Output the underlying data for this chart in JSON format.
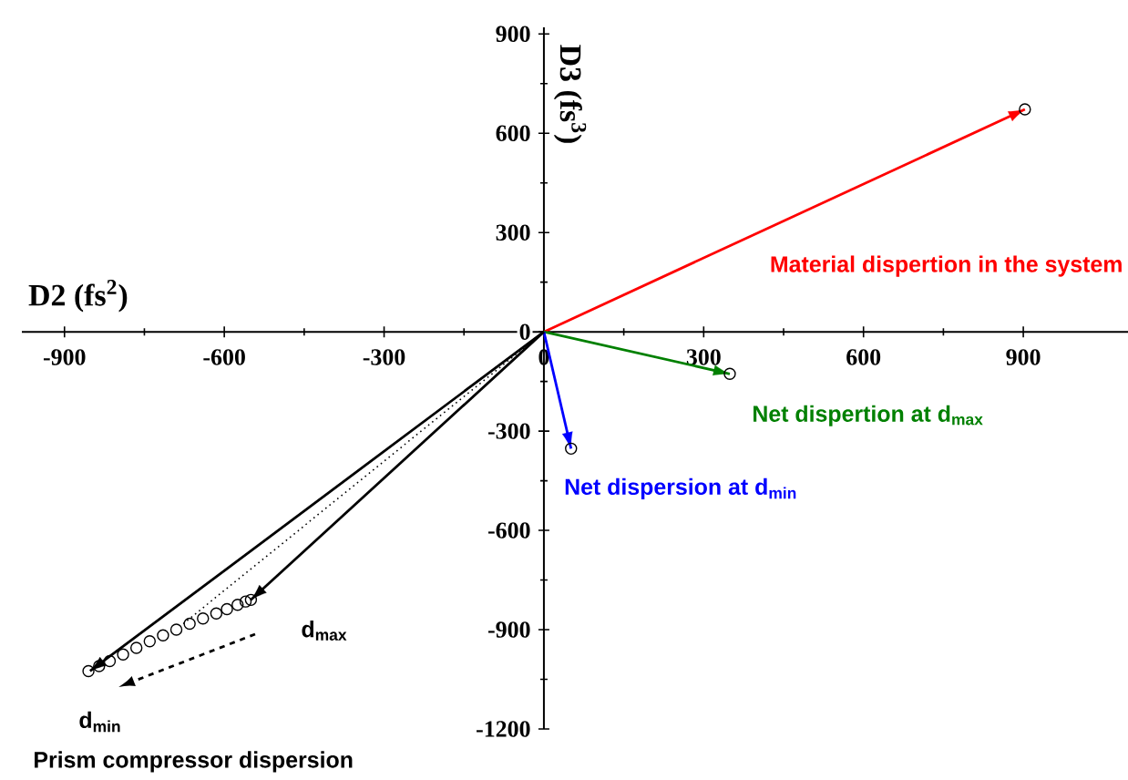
{
  "chart_data": {
    "type": "line",
    "xlabel": "D2 (fs$^{2}$)",
    "ylabel": "D3 (fs$^{3}$)",
    "xlim": [
      -980,
      1100
    ],
    "ylim": [
      -1200,
      920
    ],
    "xticks": [
      -900,
      -600,
      -300,
      0,
      300,
      600,
      900
    ],
    "yticks": [
      -1200,
      -900,
      -600,
      -300,
      0,
      300,
      600,
      900
    ],
    "series": [
      {
        "name": "Material dispertion in the system",
        "color": "#ff0000",
        "x": [
          0,
          903
        ],
        "values": [
          0,
          672
        ]
      },
      {
        "name": "Net dispertion at d$_{max}$",
        "color": "#008000",
        "x": [
          0,
          349
        ],
        "values": [
          0,
          -127
        ]
      },
      {
        "name": "Net dispersion at d$_{min}$",
        "color": "#0000ff",
        "x": [
          0,
          51
        ],
        "values": [
          0,
          -353
        ]
      },
      {
        "color": "#000000",
        "x": [
          0,
          -852
        ],
        "values": [
          0,
          -1025
        ]
      },
      {
        "color": "#000000",
        "x": [
          0,
          -550
        ],
        "values": [
          0,
          -810
        ]
      },
      {
        "color": "#000000",
        "line_style": "dotted",
        "x": [
          0,
          -677
        ],
        "values": [
          0,
          -882
        ]
      },
      {
        "type": "scatter",
        "marker": "circle",
        "color": "#000000",
        "x": [
          903,
          349,
          51,
          -550,
          -560,
          -575,
          -595,
          -615,
          -640,
          -665,
          -690,
          -715,
          -740,
          -765,
          -790,
          -815,
          -835,
          -855
        ],
        "values": [
          672,
          -127,
          -353,
          -810,
          -815,
          -825,
          -838,
          -851,
          -866,
          -882,
          -900,
          -917,
          -935,
          -955,
          -975,
          -995,
          -1010,
          -1025
        ]
      }
    ],
    "annotations": [
      "d$_{max}$",
      "d$_{min}$",
      "Prism compressor dispersion"
    ]
  }
}
